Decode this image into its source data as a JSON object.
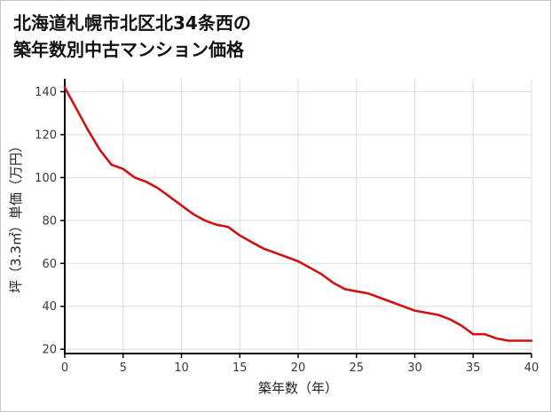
{
  "title": {
    "line1": "北海道札幌市北区北34条西の",
    "line2": "築年数別中古マンション価格"
  },
  "chart_data": {
    "type": "line",
    "title": "北海道札幌市北区北34条西の築年数別中古マンション価格",
    "xlabel": "築年数（年）",
    "ylabel": "坪（3.3㎡）単価（万円）",
    "x": [
      0,
      1,
      2,
      3,
      4,
      5,
      6,
      7,
      8,
      9,
      10,
      11,
      12,
      13,
      14,
      15,
      16,
      17,
      18,
      19,
      20,
      21,
      22,
      23,
      24,
      25,
      26,
      27,
      28,
      29,
      30,
      31,
      32,
      33,
      34,
      35,
      36,
      37,
      38,
      39,
      40
    ],
    "series": [
      {
        "name": "坪単価",
        "values": [
          142,
          132,
          122,
          113,
          106,
          104,
          100,
          98,
          95,
          91,
          87,
          83,
          80,
          78,
          77,
          73,
          70,
          67,
          65,
          63,
          61,
          58,
          55,
          51,
          48,
          47,
          46,
          44,
          42,
          40,
          38,
          37,
          36,
          34,
          31,
          27,
          27,
          25,
          24,
          24,
          24
        ]
      }
    ],
    "xlim": [
      0,
      40
    ],
    "ylim": [
      18,
      146
    ],
    "xticks": [
      0,
      5,
      10,
      15,
      20,
      25,
      30,
      35,
      40
    ],
    "yticks": [
      20,
      40,
      60,
      80,
      100,
      120,
      140
    ],
    "grid": true,
    "legend_position": "none",
    "line_color": "#d01212",
    "grid_color": "#dcdcdc",
    "axis_color": "#000000",
    "tick_label_color": "#3a3a3a",
    "axis_label_color": "#222222"
  }
}
